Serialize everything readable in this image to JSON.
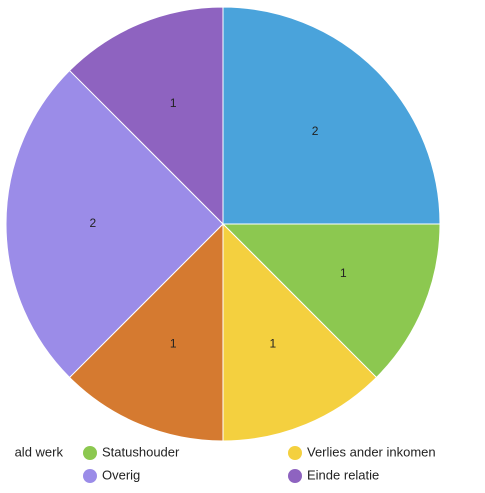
{
  "chart_data": {
    "type": "pie",
    "categories": [
      "ald werk",
      "Statushouder",
      "Verlies ander inkomen",
      null,
      "Overig",
      "Einde relatie"
    ],
    "values": [
      2,
      1,
      1,
      1,
      2,
      1
    ],
    "colors": [
      "#4aa3db",
      "#8cc850",
      "#f4d03f",
      "#d57a30",
      "#9b8ce8",
      "#8e63c0"
    ],
    "legend": "bottom"
  }
}
